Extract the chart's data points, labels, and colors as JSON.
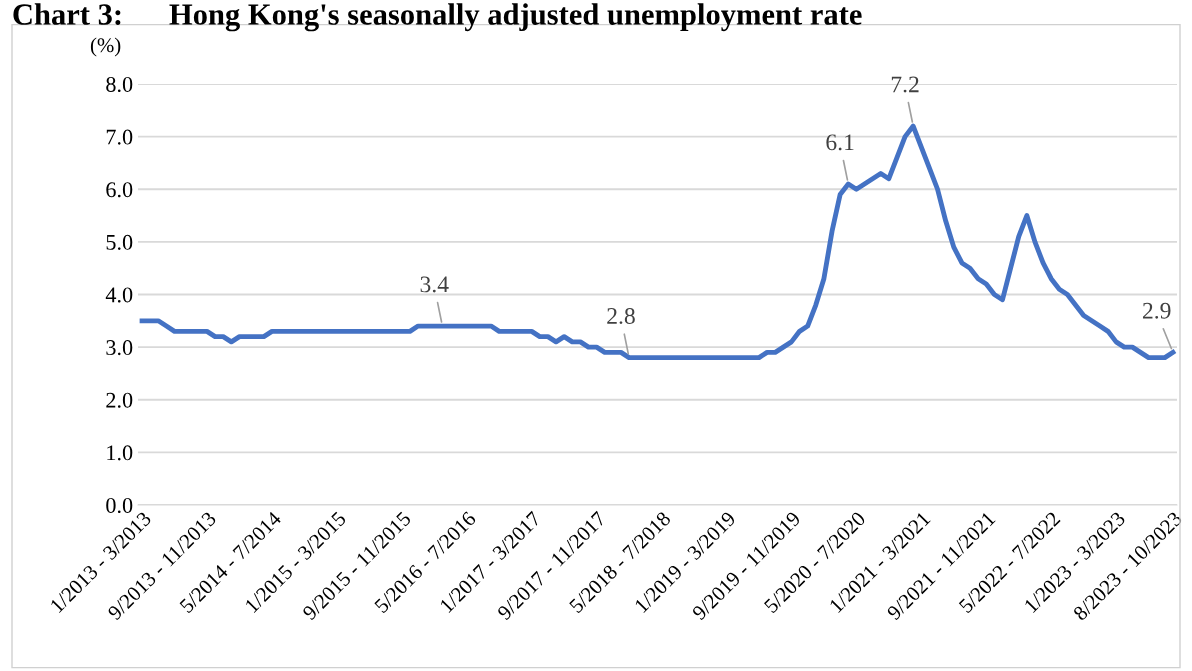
{
  "chart_data": {
    "type": "line",
    "title": "Chart 3:      Hong Kong's seasonally adjusted unemployment rate",
    "ylabel": "(%)",
    "categories": [
      "1/2013 - 3/2013",
      null,
      null,
      null,
      null,
      null,
      null,
      null,
      "9/2013 - 11/2013",
      null,
      null,
      null,
      null,
      null,
      null,
      null,
      "5/2014 - 7/2014",
      null,
      null,
      null,
      null,
      null,
      null,
      null,
      "1/2015 - 3/2015",
      null,
      null,
      null,
      null,
      null,
      null,
      null,
      "9/2015 - 11/2015",
      null,
      null,
      null,
      null,
      null,
      null,
      null,
      "5/2016 - 7/2016",
      null,
      null,
      null,
      null,
      null,
      null,
      null,
      "1/2017 - 3/2017",
      null,
      null,
      null,
      null,
      null,
      null,
      null,
      "9/2017 - 11/2017",
      null,
      null,
      null,
      null,
      null,
      null,
      null,
      "5/2018 - 7/2018",
      null,
      null,
      null,
      null,
      null,
      null,
      null,
      "1/2019 - 3/2019",
      null,
      null,
      null,
      null,
      null,
      null,
      null,
      "9/2019 - 11/2019",
      null,
      null,
      null,
      null,
      null,
      null,
      null,
      "5/2020 - 7/2020",
      null,
      null,
      null,
      null,
      null,
      null,
      null,
      "1/2021 - 3/2021",
      null,
      null,
      null,
      null,
      null,
      null,
      null,
      "9/2021 - 11/2021",
      null,
      null,
      null,
      null,
      null,
      null,
      null,
      "5/2022 - 7/2022",
      null,
      null,
      null,
      null,
      null,
      null,
      null,
      "1/2023 - 3/2023",
      null,
      null,
      null,
      null,
      null,
      null,
      "8/2023 - 10/2023"
    ],
    "series": [
      {
        "color": "#4472c4",
        "values": [
          3.5,
          3.5,
          3.5,
          3.4,
          3.3,
          3.3,
          3.3,
          3.3,
          3.3,
          3.2,
          3.2,
          3.1,
          3.2,
          3.2,
          3.2,
          3.2,
          3.3,
          3.3,
          3.3,
          3.3,
          3.3,
          3.3,
          3.3,
          3.3,
          3.3,
          3.3,
          3.3,
          3.3,
          3.3,
          3.3,
          3.3,
          3.3,
          3.3,
          3.3,
          3.4,
          3.4,
          3.4,
          3.4,
          3.4,
          3.4,
          3.4,
          3.4,
          3.4,
          3.4,
          3.3,
          3.3,
          3.3,
          3.3,
          3.3,
          3.2,
          3.2,
          3.1,
          3.2,
          3.1,
          3.1,
          3.0,
          3.0,
          2.9,
          2.9,
          2.9,
          2.8,
          2.8,
          2.8,
          2.8,
          2.8,
          2.8,
          2.8,
          2.8,
          2.8,
          2.8,
          2.8,
          2.8,
          2.8,
          2.8,
          2.8,
          2.8,
          2.8,
          2.9,
          2.9,
          3.0,
          3.1,
          3.3,
          3.4,
          3.8,
          4.3,
          5.2,
          5.9,
          6.1,
          6.0,
          6.1,
          6.2,
          6.3,
          6.2,
          6.6,
          7.0,
          7.2,
          6.8,
          6.4,
          6.0,
          5.4,
          4.9,
          4.6,
          4.5,
          4.3,
          4.2,
          4.0,
          3.9,
          4.5,
          5.1,
          5.5,
          5.0,
          4.6,
          4.3,
          4.1,
          4.0,
          3.8,
          3.6,
          3.5,
          3.4,
          3.3,
          3.1,
          3.0,
          3.0,
          2.9,
          2.8,
          2.8,
          2.8,
          2.9
        ],
        "value_labels": [
          null,
          null,
          null,
          null,
          null,
          null,
          null,
          null,
          null,
          null,
          null,
          null,
          null,
          null,
          null,
          null,
          null,
          null,
          null,
          null,
          null,
          null,
          null,
          null,
          null,
          null,
          null,
          null,
          null,
          null,
          null,
          null,
          null,
          null,
          null,
          null,
          null,
          "3.4",
          null,
          null,
          null,
          null,
          null,
          null,
          null,
          null,
          null,
          null,
          null,
          null,
          null,
          null,
          null,
          null,
          null,
          null,
          null,
          null,
          null,
          null,
          "2.8",
          null,
          null,
          null,
          null,
          null,
          null,
          null,
          null,
          null,
          null,
          null,
          null,
          null,
          null,
          null,
          null,
          null,
          null,
          null,
          null,
          null,
          null,
          null,
          null,
          null,
          null,
          "6.1",
          null,
          null,
          null,
          null,
          null,
          null,
          null,
          "7.2",
          null,
          null,
          null,
          null,
          null,
          null,
          null,
          null,
          null,
          null,
          null,
          null,
          null,
          null,
          null,
          null,
          null,
          null,
          null,
          null,
          null,
          null,
          null,
          null,
          null,
          null,
          null,
          null,
          null,
          null,
          null,
          "2.9"
        ]
      }
    ],
    "ylim": [
      0,
      8
    ],
    "yticks": [
      {
        "value": 0,
        "label": "0.0"
      },
      {
        "value": 1,
        "label": "1.0"
      },
      {
        "value": 2,
        "label": "2.0"
      },
      {
        "value": 3,
        "label": "3.0"
      },
      {
        "value": 4,
        "label": "4.0"
      },
      {
        "value": 5,
        "label": "5.0"
      },
      {
        "value": 6,
        "label": "6.0"
      },
      {
        "value": 7,
        "label": "7.0"
      },
      {
        "value": 8,
        "label": "8.0"
      }
    ],
    "grid": "y",
    "marker": "none",
    "line_style": "solid",
    "legend": false
  }
}
